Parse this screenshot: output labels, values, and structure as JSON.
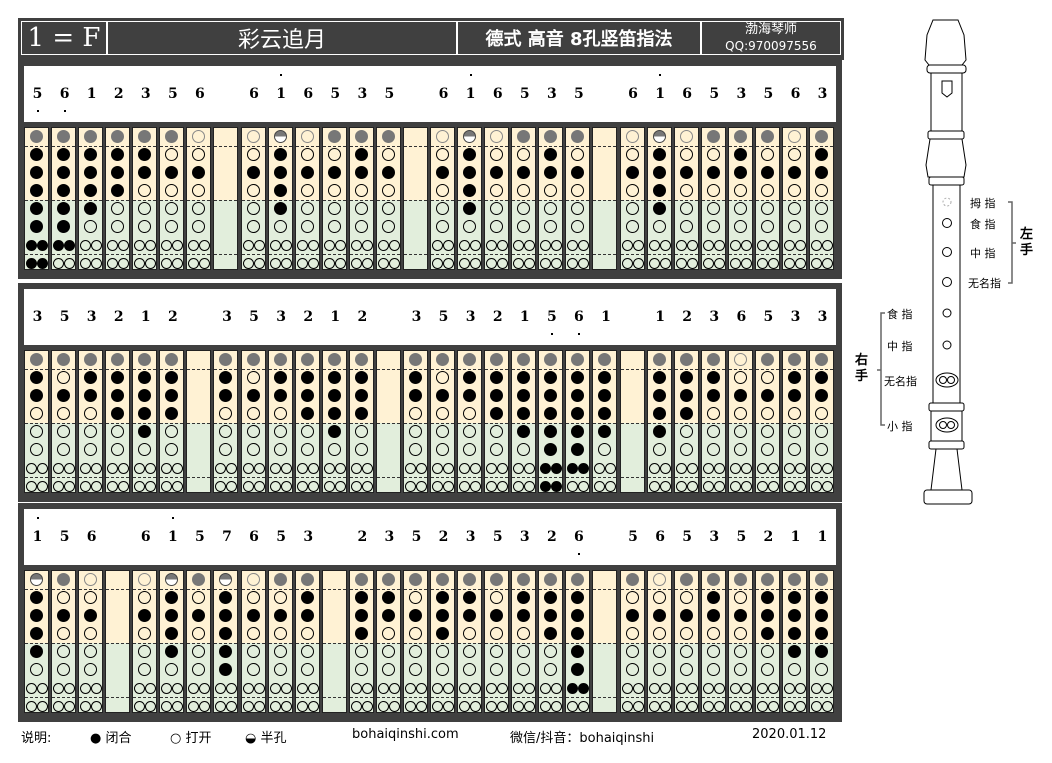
{
  "header": {
    "key": "1 = F",
    "title": "彩云追月",
    "subtitle": "德式 高音 8孔竖笛指法",
    "author": "渤海琴师",
    "qq": "QQ:970097556"
  },
  "fingerings": {
    "5,": "C1111111",
    "6,": "C1111110",
    "1": "C1111000",
    "2": "C1110000",
    "3": "C1100000",
    "5": "C0100000",
    "6": "O0100000",
    "7": "H1111100",
    "1'": "H1111000"
  },
  "rows": [
    [
      "5,",
      "6,",
      "1",
      "2",
      "3",
      "5",
      "6",
      "-",
      "6",
      "1'",
      "6",
      "5",
      "3",
      "5",
      "-",
      "6",
      "1'",
      "6",
      "5",
      "3",
      "5",
      "-",
      "6",
      "1'",
      "6",
      "5",
      "3",
      "5",
      "6",
      "3"
    ],
    [
      "3",
      "5",
      "3",
      "2",
      "1",
      "2",
      "-",
      "3",
      "5",
      "3",
      "2",
      "1",
      "2",
      "-",
      "3",
      "5",
      "3",
      "2",
      "1",
      "5,",
      "6,",
      "1",
      "-",
      "1",
      "2",
      "3",
      "6",
      "5",
      "3",
      "3"
    ],
    [
      "1'",
      "5",
      "6",
      "-",
      "6",
      "1'",
      "5",
      "7",
      "6",
      "5",
      "3",
      "-",
      "2",
      "3",
      "5",
      "2",
      "3",
      "5",
      "3",
      "2",
      "6,",
      "-",
      "5",
      "6",
      "5",
      "3",
      "5",
      "2",
      "1",
      "1"
    ]
  ],
  "colors": {
    "panel": "#404040",
    "upper": "#fff2d4",
    "lower": "#e2eedc",
    "thumb_closed": "#777777"
  },
  "recorder": {
    "left_hand": "左手",
    "right_hand": "右手",
    "left_labels": [
      "拇 指",
      "食 指",
      "中 指",
      "无名指"
    ],
    "right_labels": [
      "食 指",
      "中 指",
      "无名指",
      "小 指"
    ]
  },
  "footer": {
    "legend_title": "说明:",
    "closed": "闭合",
    "open": "打开",
    "half": "半孔",
    "website": "bohaiqinshi.com",
    "social": "微信/抖音：bohaiqinshi",
    "date": "2020.01.12"
  }
}
